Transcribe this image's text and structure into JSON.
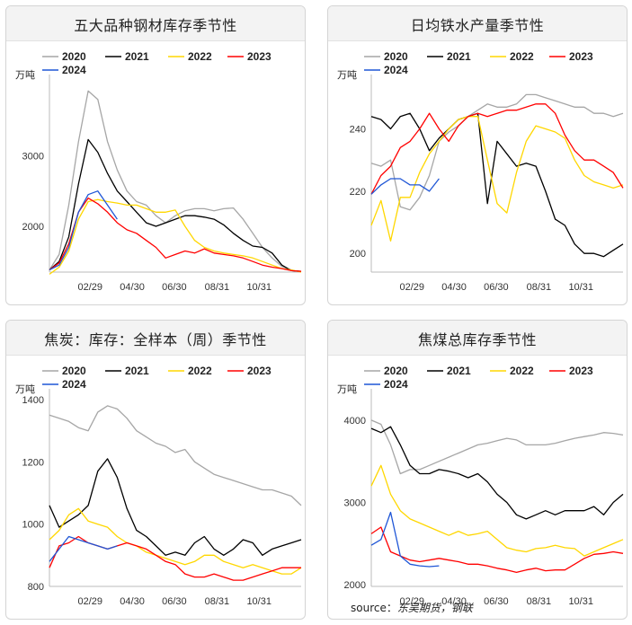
{
  "source": {
    "label": "source：",
    "text": "东吴期货，钢联"
  },
  "chart_data": [
    {
      "title": "五大品种钢材库存季节性",
      "type": "line",
      "ylabel": "万吨",
      "yticks": [
        2000,
        3000
      ],
      "ylim": [
        1350,
        4000
      ],
      "xticks": [
        "02/29",
        "04/30",
        "06/30",
        "08/31",
        "10/31"
      ],
      "x": [
        "01/01",
        "01/15",
        "01/29",
        "02/12",
        "02/26",
        "03/11",
        "03/25",
        "04/08",
        "04/22",
        "05/06",
        "05/20",
        "06/03",
        "06/17",
        "07/01",
        "07/15",
        "07/29",
        "08/12",
        "08/26",
        "09/09",
        "09/23",
        "10/07",
        "10/21",
        "11/04",
        "11/18",
        "12/02",
        "12/16",
        "12/30"
      ],
      "series": [
        {
          "name": "2020",
          "color": "#a6a6a6",
          "values": [
            1380,
            1600,
            2300,
            3200,
            3920,
            3800,
            3200,
            2800,
            2500,
            2350,
            2300,
            2150,
            2050,
            2150,
            2220,
            2250,
            2250,
            2220,
            2250,
            2260,
            2100,
            1900,
            1700,
            1550,
            1430,
            1380,
            1350
          ]
        },
        {
          "name": "2021",
          "color": "#000000",
          "values": [
            1380,
            1500,
            1850,
            2600,
            3230,
            3050,
            2750,
            2500,
            2350,
            2200,
            2050,
            2000,
            2050,
            2100,
            2150,
            2150,
            2130,
            2100,
            2020,
            1900,
            1800,
            1720,
            1700,
            1620,
            1450,
            1370,
            1360
          ]
        },
        {
          "name": "2022",
          "color": "#ffd700",
          "values": [
            1320,
            1420,
            1650,
            2100,
            2350,
            2380,
            2350,
            2330,
            2300,
            2300,
            2250,
            2200,
            2200,
            2230,
            2000,
            1800,
            1700,
            1650,
            1620,
            1600,
            1580,
            1550,
            1500,
            1450,
            1400,
            1380,
            1350
          ]
        },
        {
          "name": "2023",
          "color": "#ff0000",
          "values": [
            1380,
            1480,
            1750,
            2200,
            2400,
            2320,
            2200,
            2050,
            1950,
            1900,
            1800,
            1700,
            1550,
            1600,
            1650,
            1620,
            1680,
            1620,
            1600,
            1580,
            1550,
            1500,
            1450,
            1420,
            1400,
            1370,
            1360
          ]
        },
        {
          "name": "2024",
          "color": "#1f56d6",
          "values": [
            1380,
            1450,
            1700,
            2200,
            2450,
            2500,
            2300,
            2100,
            null,
            null,
            null,
            null,
            null,
            null,
            null,
            null,
            null,
            null,
            null,
            null,
            null,
            null,
            null,
            null,
            null,
            null,
            null
          ]
        }
      ]
    },
    {
      "title": "日均铁水产量季节性",
      "type": "line",
      "ylabel": "万吨",
      "yticks": [
        200,
        220,
        240
      ],
      "ylim": [
        194,
        254
      ],
      "xticks": [
        "02/29",
        "04/30",
        "06/30",
        "08/31",
        "10/31"
      ],
      "x": [
        "01/01",
        "01/15",
        "01/29",
        "02/12",
        "02/26",
        "03/11",
        "03/25",
        "04/08",
        "04/22",
        "05/06",
        "05/20",
        "06/03",
        "06/17",
        "07/01",
        "07/15",
        "07/29",
        "08/12",
        "08/26",
        "09/09",
        "09/23",
        "10/07",
        "10/21",
        "11/04",
        "11/18",
        "12/02",
        "12/16",
        "12/30"
      ],
      "series": [
        {
          "name": "2020",
          "color": "#a6a6a6",
          "values": [
            229,
            228,
            230,
            215,
            214,
            218,
            225,
            236,
            239,
            241,
            244,
            246,
            248,
            247,
            247,
            248,
            251,
            251,
            250,
            249,
            248,
            247,
            247,
            245,
            245,
            244,
            245
          ]
        },
        {
          "name": "2021",
          "color": "#000000",
          "values": [
            244,
            243,
            240,
            244,
            245,
            240,
            233,
            237,
            240,
            243,
            244,
            245,
            216,
            236,
            232,
            228,
            229,
            228,
            220,
            211,
            209,
            203,
            200,
            200,
            199,
            201,
            203
          ]
        },
        {
          "name": "2022",
          "color": "#ffd700",
          "values": [
            209,
            217,
            204,
            218,
            218,
            226,
            232,
            236,
            240,
            243,
            244,
            244,
            230,
            216,
            213,
            226,
            236,
            241,
            240,
            239,
            237,
            230,
            225,
            223,
            222,
            221,
            222
          ]
        },
        {
          "name": "2023",
          "color": "#ff0000",
          "values": [
            219,
            225,
            228,
            234,
            236,
            240,
            245,
            240,
            236,
            241,
            244,
            245,
            244,
            245,
            246,
            246,
            247,
            248,
            248,
            245,
            238,
            233,
            230,
            230,
            228,
            226,
            221
          ]
        },
        {
          "name": "2024",
          "color": "#1f56d6",
          "values": [
            219,
            222,
            224,
            224,
            222,
            222,
            220,
            224,
            null,
            null,
            null,
            null,
            null,
            null,
            null,
            null,
            null,
            null,
            null,
            null,
            null,
            null,
            null,
            null,
            null,
            null,
            null
          ]
        }
      ]
    },
    {
      "title": "焦炭：库存：全样本（周）季节性",
      "type": "line",
      "ylabel": "万吨",
      "yticks": [
        800,
        1000,
        1200,
        1400
      ],
      "ylim": [
        800,
        1400
      ],
      "xticks": [
        "02/29",
        "04/30",
        "06/30",
        "08/31",
        "10/31"
      ],
      "x": [
        "01/01",
        "01/15",
        "01/29",
        "02/12",
        "02/26",
        "03/11",
        "03/25",
        "04/08",
        "04/22",
        "05/06",
        "05/20",
        "06/03",
        "06/17",
        "07/01",
        "07/15",
        "07/29",
        "08/12",
        "08/26",
        "09/09",
        "09/23",
        "10/07",
        "10/21",
        "11/04",
        "11/18",
        "12/02",
        "12/16",
        "12/30"
      ],
      "series": [
        {
          "name": "2020",
          "color": "#a6a6a6",
          "values": [
            1350,
            1340,
            1330,
            1310,
            1300,
            1360,
            1380,
            1370,
            1340,
            1300,
            1280,
            1260,
            1250,
            1230,
            1240,
            1200,
            1180,
            1160,
            1150,
            1140,
            1130,
            1120,
            1110,
            1110,
            1100,
            1090,
            1060
          ]
        },
        {
          "name": "2021",
          "color": "#000000",
          "values": [
            1060,
            990,
            1010,
            1030,
            1060,
            1170,
            1210,
            1150,
            1050,
            980,
            960,
            930,
            900,
            910,
            900,
            940,
            960,
            920,
            900,
            920,
            950,
            940,
            900,
            920,
            930,
            940,
            950
          ]
        },
        {
          "name": "2022",
          "color": "#ffd700",
          "values": [
            950,
            980,
            1030,
            1050,
            1010,
            1000,
            990,
            960,
            940,
            930,
            910,
            900,
            890,
            880,
            870,
            880,
            900,
            900,
            880,
            870,
            860,
            870,
            860,
            850,
            840,
            840,
            860
          ]
        },
        {
          "name": "2023",
          "color": "#ff0000",
          "values": [
            860,
            930,
            940,
            960,
            940,
            930,
            920,
            930,
            940,
            930,
            920,
            900,
            880,
            870,
            840,
            830,
            830,
            840,
            830,
            820,
            820,
            830,
            840,
            850,
            860,
            860,
            860
          ]
        },
        {
          "name": "2024",
          "color": "#1f56d6",
          "values": [
            880,
            920,
            960,
            950,
            940,
            930,
            920,
            930,
            null,
            null,
            null,
            null,
            null,
            null,
            null,
            null,
            null,
            null,
            null,
            null,
            null,
            null,
            null,
            null,
            null,
            null,
            null
          ]
        }
      ]
    },
    {
      "title": "焦煤总库存季节性",
      "type": "line",
      "ylabel": "万吨",
      "yticks": [
        2000,
        3000,
        4000
      ],
      "ylim": [
        1980,
        4250
      ],
      "xticks": [
        "02/29",
        "04/30",
        "06/30",
        "08/31",
        "10/31"
      ],
      "x": [
        "01/01",
        "01/15",
        "01/29",
        "02/12",
        "02/26",
        "03/11",
        "03/25",
        "04/08",
        "04/22",
        "05/06",
        "05/20",
        "06/03",
        "06/17",
        "07/01",
        "07/15",
        "07/29",
        "08/12",
        "08/26",
        "09/09",
        "09/23",
        "10/07",
        "10/21",
        "11/04",
        "11/18",
        "12/02",
        "12/16",
        "12/30"
      ],
      "series": [
        {
          "name": "2020",
          "color": "#a6a6a6",
          "values": [
            4000,
            3950,
            3700,
            3350,
            3400,
            3400,
            3450,
            3500,
            3550,
            3600,
            3650,
            3700,
            3720,
            3750,
            3780,
            3760,
            3700,
            3700,
            3700,
            3720,
            3750,
            3780,
            3800,
            3820,
            3850,
            3840,
            3820
          ]
        },
        {
          "name": "2021",
          "color": "#000000",
          "values": [
            3900,
            3850,
            3920,
            3700,
            3450,
            3350,
            3350,
            3400,
            3380,
            3350,
            3300,
            3350,
            3250,
            3100,
            3000,
            2850,
            2800,
            2850,
            2900,
            2850,
            2900,
            2900,
            2900,
            2950,
            2850,
            3000,
            3100
          ]
        },
        {
          "name": "2022",
          "color": "#ffd700",
          "values": [
            3200,
            3450,
            3100,
            2900,
            2800,
            2750,
            2700,
            2650,
            2600,
            2650,
            2600,
            2620,
            2650,
            2550,
            2450,
            2420,
            2400,
            2440,
            2450,
            2480,
            2450,
            2440,
            2350,
            2400,
            2450,
            2500,
            2550
          ]
        },
        {
          "name": "2023",
          "color": "#ff0000",
          "values": [
            2620,
            2700,
            2400,
            2350,
            2300,
            2280,
            2300,
            2320,
            2300,
            2280,
            2250,
            2250,
            2230,
            2200,
            2180,
            2150,
            2180,
            2200,
            2170,
            2180,
            2180,
            2250,
            2320,
            2370,
            2380,
            2400,
            2380
          ]
        },
        {
          "name": "2024",
          "color": "#1f56d6",
          "values": [
            2480,
            2550,
            2880,
            2350,
            2250,
            2230,
            2220,
            2230,
            null,
            null,
            null,
            null,
            null,
            null,
            null,
            null,
            null,
            null,
            null,
            null,
            null,
            null,
            null,
            null,
            null,
            null,
            null
          ]
        }
      ]
    }
  ]
}
